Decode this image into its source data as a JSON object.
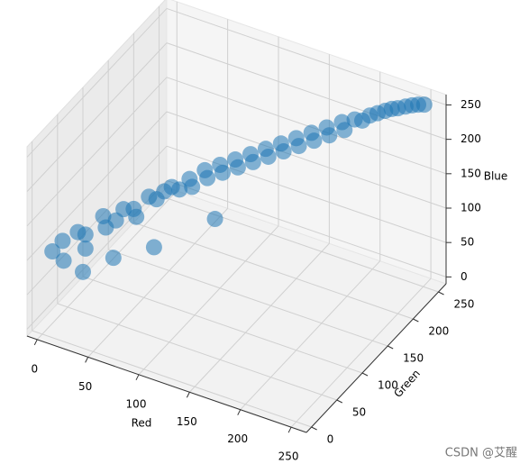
{
  "chart_data": {
    "type": "scatter3d",
    "xlabel": "Red",
    "ylabel": "Green",
    "zlabel": "Blue",
    "xlim": [
      -10,
      265
    ],
    "ylim": [
      -10,
      265
    ],
    "zlim": [
      -10,
      265
    ],
    "xticks": [
      0,
      50,
      100,
      150,
      200,
      250
    ],
    "yticks": [
      0,
      50,
      100,
      150,
      200,
      250
    ],
    "zticks": [
      0,
      50,
      100,
      150,
      200,
      250
    ],
    "color": "#1f77b4",
    "grid": true,
    "x": [
      5,
      10,
      15,
      20,
      25,
      30,
      35,
      40,
      45,
      50,
      55,
      60,
      65,
      70,
      75,
      80,
      85,
      90,
      95,
      100,
      105,
      110,
      115,
      120,
      125,
      130,
      135,
      140,
      145,
      150,
      155,
      160,
      165,
      170,
      175,
      180,
      185,
      190,
      195,
      200,
      205,
      210,
      215,
      220,
      225,
      230,
      235,
      240,
      245,
      250,
      30,
      50,
      80,
      120
    ],
    "y": [
      10,
      20,
      12,
      30,
      35,
      25,
      50,
      45,
      55,
      60,
      70,
      65,
      80,
      85,
      90,
      95,
      100,
      110,
      105,
      120,
      115,
      130,
      125,
      140,
      135,
      150,
      145,
      160,
      155,
      170,
      165,
      180,
      175,
      190,
      185,
      200,
      195,
      210,
      205,
      215,
      220,
      225,
      230,
      235,
      238,
      240,
      245,
      248,
      250,
      252,
      20,
      40,
      60,
      100
    ],
    "z": [
      105,
      115,
      95,
      125,
      120,
      110,
      140,
      130,
      135,
      150,
      145,
      140,
      160,
      155,
      165,
      170,
      165,
      175,
      170,
      185,
      180,
      190,
      185,
      195,
      190,
      200,
      195,
      205,
      200,
      210,
      205,
      215,
      210,
      220,
      215,
      225,
      220,
      230,
      225,
      235,
      232,
      238,
      240,
      242,
      245,
      247,
      248,
      250,
      252,
      253,
      80,
      95,
      110,
      140
    ]
  },
  "watermark": "CSDN @艾醒"
}
